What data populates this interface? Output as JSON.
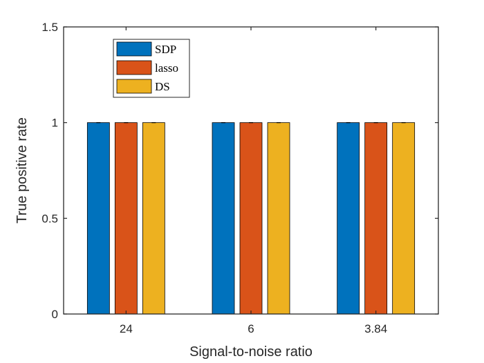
{
  "chart_data": {
    "type": "bar",
    "title": "",
    "xlabel": "Signal-to-noise ratio",
    "ylabel": "True positive rate",
    "categories": [
      "24",
      "6",
      "3.84"
    ],
    "ylim": [
      0,
      1.5
    ],
    "yticks": [
      0,
      0.5,
      1,
      1.5
    ],
    "ytick_labels": [
      "0",
      "0.5",
      "1",
      "1.5"
    ],
    "grid": false,
    "legend_position": "top-left",
    "series": [
      {
        "name": "SDP",
        "color": "#0072BD",
        "values": [
          1,
          1,
          1
        ]
      },
      {
        "name": "lasso",
        "color": "#D95319",
        "values": [
          1,
          1,
          1
        ]
      },
      {
        "name": "DS",
        "color": "#EDB120",
        "values": [
          1,
          1,
          1
        ]
      }
    ]
  }
}
